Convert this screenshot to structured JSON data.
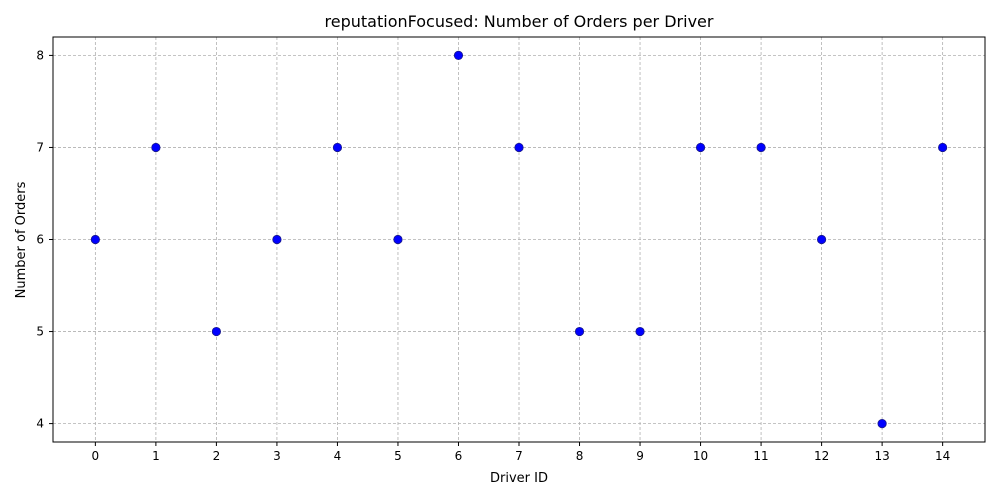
{
  "chart_data": {
    "type": "scatter",
    "title": "reputationFocused: Number of Orders per Driver",
    "xlabel": "Driver ID",
    "ylabel": "Number of Orders",
    "x": [
      0,
      1,
      2,
      3,
      4,
      5,
      6,
      7,
      8,
      9,
      10,
      11,
      12,
      13,
      14
    ],
    "y": [
      6,
      7,
      5,
      6,
      7,
      6,
      8,
      7,
      5,
      5,
      7,
      7,
      6,
      4,
      7
    ],
    "xticks": [
      "0",
      "1",
      "2",
      "3",
      "4",
      "5",
      "6",
      "7",
      "8",
      "9",
      "10",
      "11",
      "12",
      "13",
      "14"
    ],
    "yticks": [
      "4",
      "5",
      "6",
      "7",
      "8"
    ],
    "xlim": [
      -0.7,
      14.7
    ],
    "ylim": [
      3.8,
      8.2
    ],
    "grid": true,
    "marker_color": "#0000ff"
  }
}
